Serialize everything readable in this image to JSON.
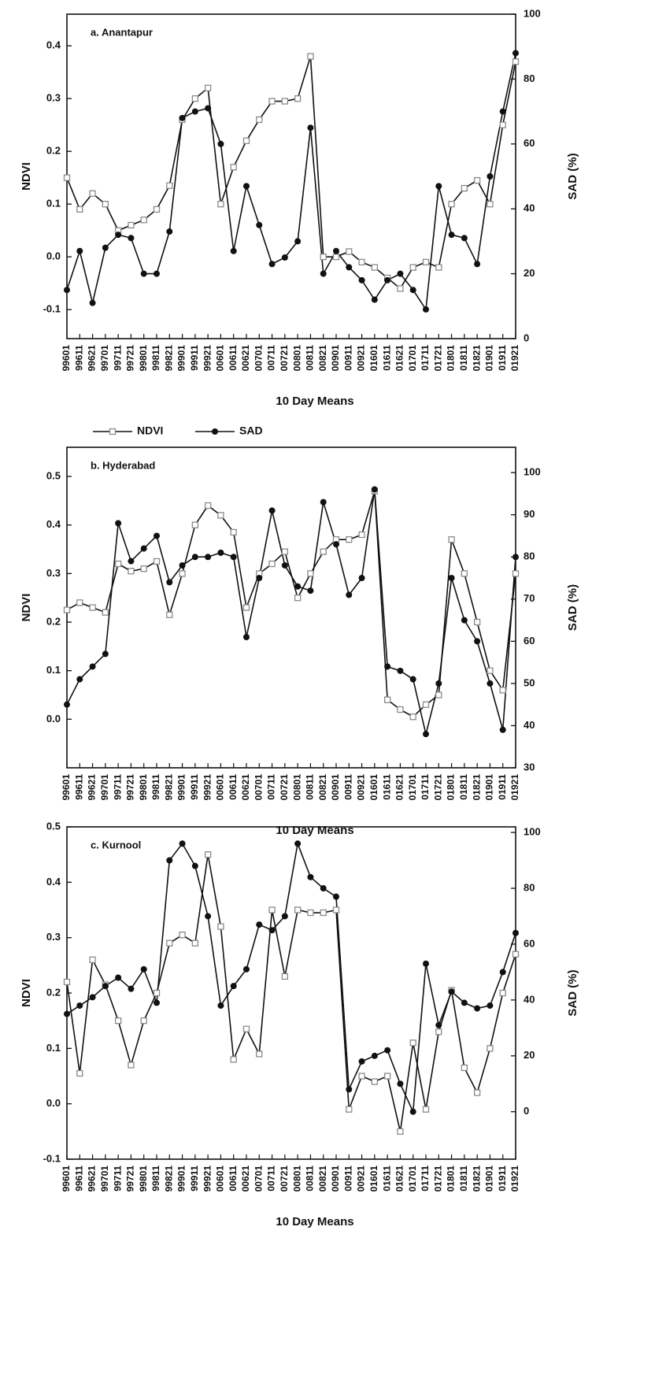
{
  "chart_data": [
    {
      "type": "line",
      "title": "a. Anantapur",
      "xlabel": "10 Day Means",
      "ylabel": "NDVI",
      "y2label": "SAD (%)",
      "categories": [
        "99601",
        "99611",
        "99621",
        "99701",
        "99711",
        "99721",
        "99801",
        "99811",
        "99821",
        "99901",
        "99911",
        "99921",
        "00601",
        "00611",
        "00621",
        "00701",
        "00711",
        "00721",
        "00801",
        "00811",
        "00821",
        "00901",
        "00911",
        "00921",
        "01601",
        "01611",
        "01621",
        "01701",
        "01711",
        "01721",
        "01801",
        "01811",
        "01821",
        "01901",
        "01911",
        "01921"
      ],
      "ylim": [
        -0.155,
        0.46
      ],
      "yticks": [
        -0.1,
        {
          "value": 0,
          "label": "0.0"
        },
        0.1,
        0.2,
        0.3,
        0.4
      ],
      "y2lim": [
        0,
        100
      ],
      "y2ticks": [
        0,
        20,
        40,
        60,
        80,
        100
      ],
      "series": [
        {
          "name": "NDVI",
          "color": "#8a8a8a",
          "values": [
            0.15,
            0.09,
            0.12,
            0.1,
            0.05,
            0.06,
            0.07,
            0.09,
            0.135,
            0.26,
            0.3,
            0.32,
            0.1,
            0.17,
            0.22,
            0.26,
            0.295,
            0.295,
            0.3,
            0.38,
            0.0,
            0.0,
            0.01,
            -0.01,
            -0.02,
            -0.04,
            -0.06,
            -0.02,
            -0.01,
            -0.02,
            0.1,
            0.13,
            0.145,
            0.1,
            0.25,
            0.37
          ]
        },
        {
          "name": "SAD",
          "color": "#111111",
          "axis": "y2",
          "values": [
            15,
            27,
            11,
            28,
            32,
            31,
            20,
            20,
            33,
            68,
            70,
            71,
            60,
            27,
            47,
            35,
            23,
            25,
            30,
            65,
            20,
            27,
            22,
            18,
            12,
            18,
            20,
            15,
            9,
            47,
            32,
            31,
            23,
            50,
            70,
            88
          ]
        }
      ]
    },
    {
      "type": "line",
      "title": "b. Hyderabad",
      "xlabel": "10 Day Means",
      "ylabel": "NDVI",
      "y2label": "SAD (%)",
      "categories": [
        "99601",
        "99611",
        "99621",
        "99701",
        "99711",
        "99721",
        "99801",
        "99811",
        "99821",
        "99901",
        "99911",
        "99921",
        "00601",
        "00611",
        "00621",
        "00701",
        "00711",
        "00721",
        "00801",
        "00811",
        "00821",
        "00901",
        "00911",
        "00921",
        "01601",
        "01611",
        "01621",
        "01701",
        "01711",
        "01721",
        "01801",
        "01811",
        "01821",
        "01901",
        "01911",
        "01921"
      ],
      "ylim": [
        -0.1,
        0.56
      ],
      "yticks": [
        {
          "value": 0,
          "label": "0.0"
        },
        0.1,
        0.2,
        0.3,
        0.4,
        0.5
      ],
      "y2lim": [
        30,
        106
      ],
      "y2ticks": [
        30,
        40,
        50,
        60,
        70,
        80,
        90,
        100
      ],
      "series": [
        {
          "name": "NDVI",
          "color": "#8a8a8a",
          "values": [
            0.225,
            0.24,
            0.23,
            0.22,
            0.32,
            0.305,
            0.31,
            0.325,
            0.215,
            0.3,
            0.4,
            0.44,
            0.42,
            0.385,
            0.23,
            0.3,
            0.32,
            0.345,
            0.25,
            0.3,
            0.345,
            0.37,
            0.37,
            0.38,
            0.47,
            0.04,
            0.02,
            0.005,
            0.03,
            0.05,
            0.37,
            0.3,
            0.2,
            0.1,
            0.06,
            0.3
          ]
        },
        {
          "name": "SAD",
          "color": "#111111",
          "axis": "y2",
          "values": [
            45,
            51,
            54,
            57,
            88,
            79,
            82,
            85,
            74,
            78,
            80,
            80,
            81,
            80,
            61,
            75,
            91,
            78,
            73,
            72,
            93,
            83,
            71,
            75,
            96,
            54,
            53,
            51,
            38,
            50,
            75,
            65,
            60,
            50,
            39,
            80
          ]
        }
      ]
    },
    {
      "type": "line",
      "title": "c. Kurnool",
      "xlabel": "10 Day Means",
      "ylabel": "NDVI",
      "y2label": "SAD (%)",
      "categories": [
        "99601",
        "99611",
        "99621",
        "99701",
        "99711",
        "99721",
        "99801",
        "99811",
        "99821",
        "99901",
        "99911",
        "99921",
        "00601",
        "00611",
        "00621",
        "00701",
        "00711",
        "00721",
        "00801",
        "00811",
        "00821",
        "00901",
        "00911",
        "00921",
        "01601",
        "01611",
        "01621",
        "01701",
        "01711",
        "01721",
        "01801",
        "01811",
        "01821",
        "01901",
        "01911",
        "01921"
      ],
      "ylim": [
        -0.1,
        0.5
      ],
      "yticks": [
        -0.1,
        {
          "value": 0,
          "label": "0.0"
        },
        0.1,
        0.2,
        0.3,
        0.4,
        0.5
      ],
      "y2lim": [
        -17,
        102
      ],
      "y2ticks": [
        0,
        20,
        40,
        60,
        80,
        100
      ],
      "series": [
        {
          "name": "NDVI",
          "color": "#8a8a8a",
          "values": [
            0.22,
            0.055,
            0.26,
            0.215,
            0.15,
            0.07,
            0.15,
            0.2,
            0.29,
            0.305,
            0.29,
            0.45,
            0.32,
            0.08,
            0.135,
            0.09,
            0.35,
            0.23,
            0.35,
            0.345,
            0.345,
            0.35,
            -0.01,
            0.05,
            0.04,
            0.05,
            -0.05,
            0.11,
            -0.01,
            0.13,
            0.205,
            0.065,
            0.02,
            0.1,
            0.2,
            0.27
          ]
        },
        {
          "name": "SAD",
          "color": "#111111",
          "axis": "y2",
          "values": [
            35,
            38,
            41,
            45,
            48,
            44,
            51,
            39,
            90,
            96,
            88,
            70,
            38,
            45,
            51,
            67,
            65,
            70,
            96,
            84,
            80,
            77,
            8,
            18,
            20,
            22,
            10,
            0,
            53,
            31,
            43,
            39,
            37,
            38,
            50,
            64
          ]
        }
      ]
    }
  ]
}
